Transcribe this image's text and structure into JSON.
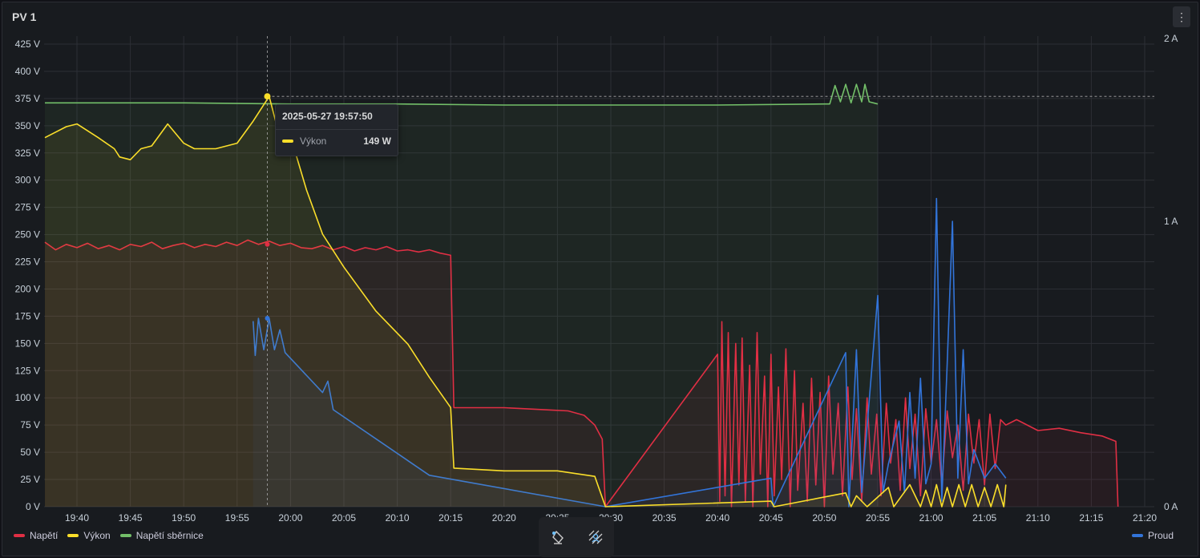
{
  "panel": {
    "title": "PV 1",
    "menu_icon": "vertical-ellipsis-icon"
  },
  "tooltip": {
    "time": "2025-05-27 19:57:50",
    "series": "Výkon",
    "value": "149 W",
    "color": "#fade2a"
  },
  "toolbar": {
    "icons": [
      "select-zoom-icon",
      "pan-icon"
    ]
  },
  "chart_data": {
    "type": "line",
    "title": "PV 1",
    "x_unit": "minutes after 19:00 (2025-05-27)",
    "xlim": [
      36,
      142
    ],
    "x_ticks": [
      "19:40",
      "19:45",
      "19:50",
      "19:55",
      "20:00",
      "20:05",
      "20:10",
      "20:15",
      "20:20",
      "20:25",
      "20:30",
      "20:35",
      "20:40",
      "20:45",
      "20:50",
      "20:55",
      "21:00",
      "21:05",
      "21:10",
      "21:15",
      "21:20"
    ],
    "y_left": {
      "lim": [
        0,
        425
      ],
      "ticks": [
        "0 V",
        "25 V",
        "50 V",
        "75 V",
        "100 V",
        "125 V",
        "150 V",
        "175 V",
        "200 V",
        "225 V",
        "250 V",
        "275 V",
        "300 V",
        "325 V",
        "350 V",
        "375 V",
        "400 V",
        "425 V"
      ]
    },
    "y_right": {
      "ticks": [
        "0 A",
        "1 A",
        "2 A"
      ]
    },
    "grid": true,
    "legend": {
      "left": [
        "Napětí",
        "Výkon",
        "Napětí sběrnice"
      ],
      "right": [
        "Proud"
      ],
      "placement": "bottom"
    },
    "series": [
      {
        "name": "Napětí",
        "unit": "V",
        "axis": "left",
        "color": "#e02f44",
        "points": [
          [
            37,
            243
          ],
          [
            38,
            236
          ],
          [
            39,
            241
          ],
          [
            40,
            238
          ],
          [
            41,
            242
          ],
          [
            42,
            237
          ],
          [
            43,
            240
          ],
          [
            44,
            236
          ],
          [
            45,
            241
          ],
          [
            46,
            239
          ],
          [
            47,
            243
          ],
          [
            48,
            237
          ],
          [
            49,
            240
          ],
          [
            50,
            242
          ],
          [
            51,
            238
          ],
          [
            52,
            241
          ],
          [
            53,
            239
          ],
          [
            54,
            243
          ],
          [
            55,
            240
          ],
          [
            56,
            245
          ],
          [
            57,
            241
          ],
          [
            58,
            244
          ],
          [
            59,
            240
          ],
          [
            60,
            242
          ],
          [
            61,
            238
          ],
          [
            62,
            237
          ],
          [
            63,
            240
          ],
          [
            64,
            236
          ],
          [
            65,
            239
          ],
          [
            66,
            235
          ],
          [
            67,
            238
          ],
          [
            68,
            236
          ],
          [
            69,
            239
          ],
          [
            70,
            235
          ],
          [
            71,
            236
          ],
          [
            72,
            234
          ],
          [
            73,
            236
          ],
          [
            74,
            233
          ],
          [
            75,
            231
          ],
          [
            75.3,
            91
          ],
          [
            80,
            91
          ],
          [
            84,
            89
          ],
          [
            86,
            88
          ],
          [
            87.5,
            84
          ],
          [
            88.5,
            75
          ],
          [
            89.2,
            62
          ],
          [
            89.5,
            0
          ],
          [
            100,
            140
          ],
          [
            100.2,
            5
          ],
          [
            100.4,
            170
          ],
          [
            100.7,
            10
          ],
          [
            101,
            160
          ],
          [
            101.3,
            0
          ],
          [
            101.7,
            150
          ],
          [
            102,
            20
          ],
          [
            102.3,
            155
          ],
          [
            102.6,
            5
          ],
          [
            103,
            130
          ],
          [
            103.3,
            0
          ],
          [
            103.7,
            160
          ],
          [
            104,
            30
          ],
          [
            104.4,
            120
          ],
          [
            104.7,
            0
          ],
          [
            105,
            140
          ],
          [
            105.3,
            10
          ],
          [
            105.7,
            110
          ],
          [
            106,
            25
          ],
          [
            106.4,
            145
          ],
          [
            106.8,
            0
          ],
          [
            107.2,
            125
          ],
          [
            107.5,
            15
          ],
          [
            108,
            95
          ],
          [
            108.4,
            5
          ],
          [
            108.8,
            118
          ],
          [
            109.2,
            20
          ],
          [
            109.6,
            105
          ],
          [
            110,
            0
          ],
          [
            110.4,
            120
          ],
          [
            110.8,
            30
          ],
          [
            111.3,
            95
          ],
          [
            111.7,
            10
          ],
          [
            112.2,
            110
          ],
          [
            112.6,
            25
          ],
          [
            113,
            90
          ],
          [
            113.5,
            5
          ],
          [
            114,
            100
          ],
          [
            114.4,
            30
          ],
          [
            114.9,
            85
          ],
          [
            115.3,
            10
          ],
          [
            115.8,
            95
          ],
          [
            116.2,
            40
          ],
          [
            116.7,
            80
          ],
          [
            117.1,
            15
          ],
          [
            117.6,
            100
          ],
          [
            118,
            35
          ],
          [
            118.5,
            85
          ],
          [
            119,
            10
          ],
          [
            119.5,
            90
          ],
          [
            120,
            40
          ],
          [
            120.5,
            80
          ],
          [
            121,
            20
          ],
          [
            121.5,
            88
          ],
          [
            122,
            45
          ],
          [
            122.5,
            75
          ],
          [
            123,
            15
          ],
          [
            123.5,
            85
          ],
          [
            124,
            40
          ],
          [
            124.5,
            80
          ],
          [
            125,
            20
          ],
          [
            125.5,
            85
          ],
          [
            126,
            35
          ],
          [
            126.5,
            80
          ],
          [
            127,
            75
          ],
          [
            128,
            80
          ],
          [
            130,
            70
          ],
          [
            132,
            72
          ],
          [
            134,
            68
          ],
          [
            136,
            65
          ],
          [
            137.3,
            60
          ],
          [
            137.5,
            0
          ]
        ]
      },
      {
        "name": "Výkon",
        "unit": "W",
        "axis": "left",
        "axis_scale": 2.53,
        "color": "#fade2a",
        "points": [
          [
            37,
            134
          ],
          [
            39,
            138
          ],
          [
            40,
            139
          ],
          [
            42,
            134
          ],
          [
            43.5,
            130
          ],
          [
            44,
            127
          ],
          [
            45,
            126
          ],
          [
            46,
            130
          ],
          [
            47,
            131
          ],
          [
            48.5,
            139
          ],
          [
            50,
            132
          ],
          [
            51,
            130
          ],
          [
            53,
            130
          ],
          [
            55,
            132
          ],
          [
            56.5,
            140
          ],
          [
            58,
            149
          ],
          [
            59,
            134
          ],
          [
            60.5,
            128
          ],
          [
            61.5,
            115
          ],
          [
            63,
            99
          ],
          [
            65,
            87
          ],
          [
            68,
            71
          ],
          [
            71,
            59
          ],
          [
            73,
            47
          ],
          [
            75,
            36
          ],
          [
            75.3,
            14
          ],
          [
            80,
            13
          ],
          [
            85,
            13
          ],
          [
            88.5,
            11
          ],
          [
            89.5,
            0
          ],
          [
            105,
            2
          ],
          [
            105.3,
            0
          ],
          [
            112,
            5
          ],
          [
            112.5,
            0
          ],
          [
            113,
            4
          ],
          [
            114,
            0
          ],
          [
            116,
            7
          ],
          [
            116.5,
            0
          ],
          [
            118,
            8
          ],
          [
            119,
            0
          ],
          [
            119.5,
            6
          ],
          [
            120,
            0
          ],
          [
            120.5,
            8
          ],
          [
            121,
            0
          ],
          [
            121.5,
            7
          ],
          [
            122,
            0
          ],
          [
            122.6,
            8
          ],
          [
            123.2,
            0
          ],
          [
            123.8,
            8
          ],
          [
            124.4,
            0
          ],
          [
            125,
            7
          ],
          [
            125.6,
            0
          ],
          [
            126.2,
            8
          ],
          [
            126.8,
            0
          ],
          [
            127,
            8
          ]
        ]
      },
      {
        "name": "Napětí sběrnice",
        "unit": "V",
        "axis": "left",
        "color": "#73bf69",
        "points": [
          [
            37,
            371
          ],
          [
            40,
            371
          ],
          [
            50,
            371
          ],
          [
            60,
            370
          ],
          [
            70,
            370
          ],
          [
            80,
            369
          ],
          [
            90,
            369
          ],
          [
            100,
            369
          ],
          [
            110,
            370
          ],
          [
            110.5,
            370
          ],
          [
            111,
            387
          ],
          [
            111.5,
            372
          ],
          [
            112,
            388
          ],
          [
            112.5,
            371
          ],
          [
            113,
            388
          ],
          [
            113.5,
            372
          ],
          [
            113.8,
            388
          ],
          [
            114.2,
            372
          ],
          [
            115,
            370
          ]
        ]
      },
      {
        "name": "Proud",
        "unit": "A",
        "axis": "right",
        "color": "#3274d9",
        "points": [
          [
            56.5,
            0.65
          ],
          [
            56.7,
            0.53
          ],
          [
            57,
            0.66
          ],
          [
            57.5,
            0.55
          ],
          [
            58,
            0.66
          ],
          [
            58.5,
            0.55
          ],
          [
            59,
            0.62
          ],
          [
            59.5,
            0.54
          ],
          [
            60,
            0.52
          ],
          [
            63,
            0.4
          ],
          [
            63.5,
            0.44
          ],
          [
            64,
            0.34
          ],
          [
            73,
            0.11
          ],
          [
            89.5,
            0
          ],
          [
            105,
            0.1
          ],
          [
            105.2,
            0
          ],
          [
            112,
            0.54
          ],
          [
            112.3,
            0
          ],
          [
            113,
            0.55
          ],
          [
            113.5,
            0.05
          ],
          [
            115,
            0.74
          ],
          [
            115.5,
            0.05
          ],
          [
            116,
            0.15
          ],
          [
            117,
            0.3
          ],
          [
            117.5,
            0.05
          ],
          [
            118,
            0.4
          ],
          [
            118.5,
            0.1
          ],
          [
            119,
            0.45
          ],
          [
            119.5,
            0.08
          ],
          [
            120,
            0.15
          ],
          [
            120.5,
            1.08
          ],
          [
            121,
            0.02
          ],
          [
            121.5,
            0.5
          ],
          [
            122,
            1.0
          ],
          [
            122.5,
            0.1
          ],
          [
            123,
            0.55
          ],
          [
            123.5,
            0.08
          ],
          [
            124,
            0.2
          ],
          [
            125,
            0.1
          ],
          [
            126,
            0.15
          ],
          [
            127,
            0.1
          ]
        ]
      }
    ]
  }
}
